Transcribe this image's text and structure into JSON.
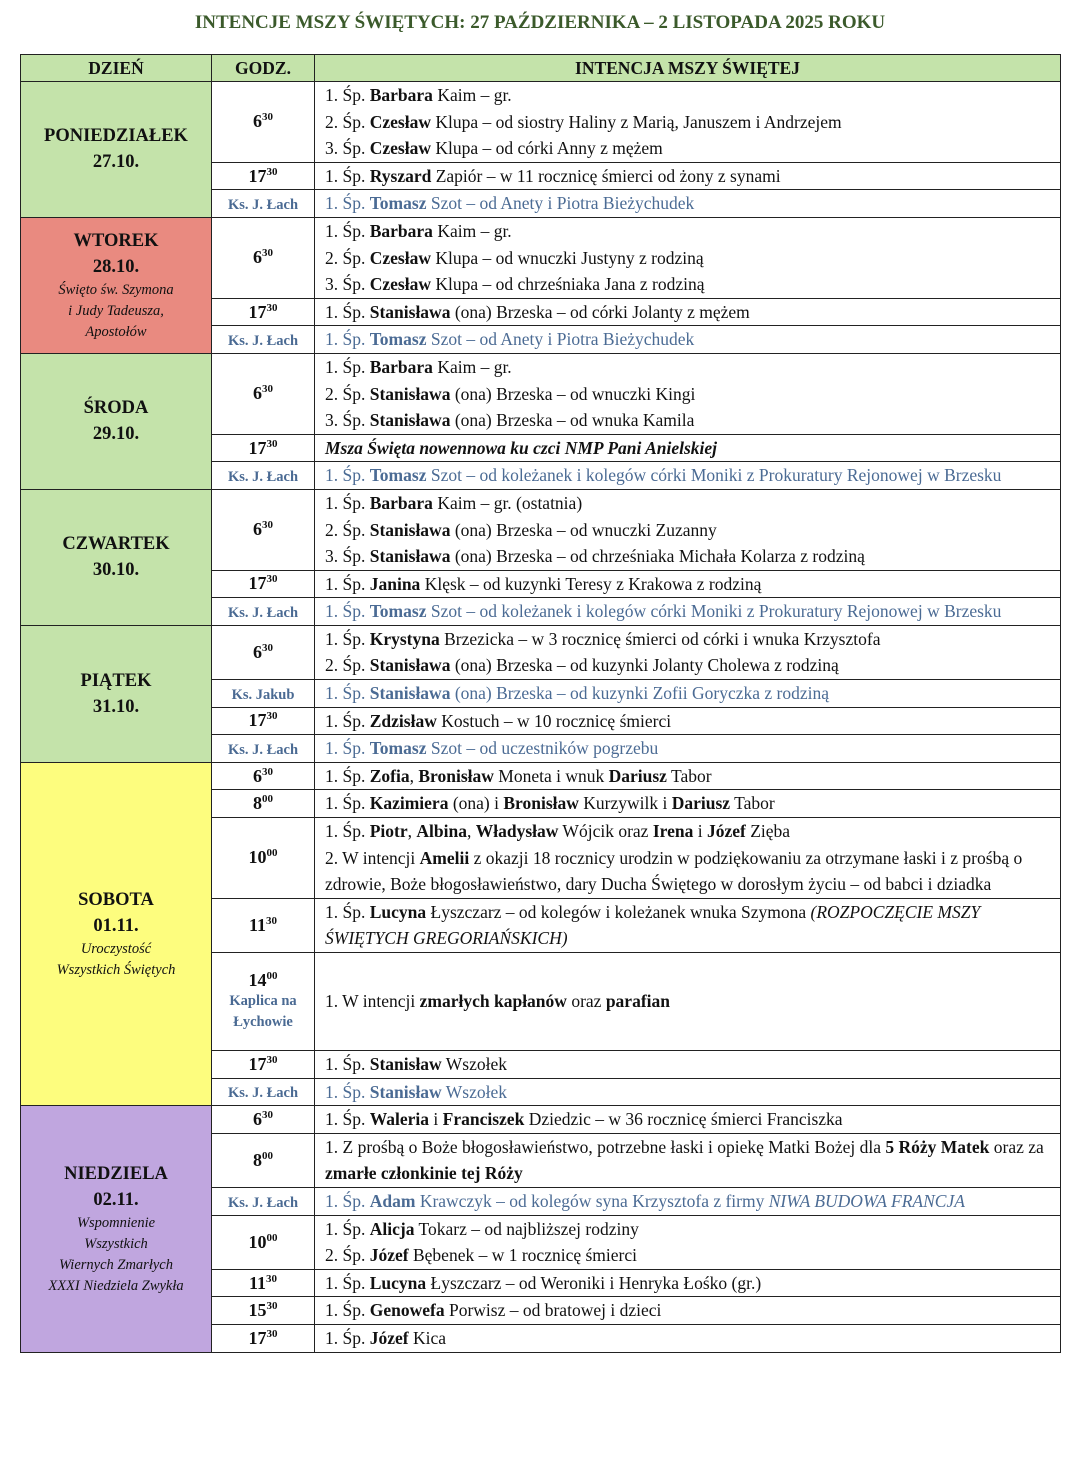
{
  "title": "INTENCJE MSZY ŚWIĘTYCH: 27 PAŹDZIERNIKA – 2 LISTOPADA 2025 ROKU",
  "headers": {
    "day": "DZIEŃ",
    "time": "GODZ.",
    "intention": "INTENCJA MSZY ŚWIĘTEJ"
  },
  "colors": {
    "title": "#3b5a2b",
    "header": "#c4e3aa",
    "priest_text": "#4b6b94"
  },
  "days": [
    {
      "name": "PONIEDZIAŁEK",
      "date": "27.10.",
      "note": [],
      "color": "#c4e3aa",
      "masses": [
        {
          "h": "6",
          "m": "30",
          "lines": [
            [
              [
                "1. Śp. ",
                ""
              ],
              [
                "Barbara",
                "b"
              ],
              [
                " Kaim – gr.",
                ""
              ]
            ],
            [
              [
                "2. Śp. ",
                ""
              ],
              [
                "Czesław",
                "b"
              ],
              [
                " Klupa – od siostry Haliny z Marią, Januszem i Andrzejem",
                ""
              ]
            ],
            [
              [
                "3. Śp. ",
                ""
              ],
              [
                "Czesław",
                "b"
              ],
              [
                " Klupa – od córki Anny z mężem",
                ""
              ]
            ]
          ]
        },
        {
          "h": "17",
          "m": "30",
          "lines": [
            [
              [
                "1. Śp. ",
                ""
              ],
              [
                "Ryszard",
                "b"
              ],
              [
                " Zapiór – w 11 rocznicę śmierci od żony z synami",
                ""
              ]
            ]
          ]
        },
        {
          "priest": "Ks. J. Łach",
          "lines": [
            [
              [
                "1. Śp. ",
                ""
              ],
              [
                "Tomasz",
                "b"
              ],
              [
                " Szot – od Anety i Piotra Bieżychudek",
                ""
              ]
            ]
          ]
        }
      ]
    },
    {
      "name": "WTOREK",
      "date": "28.10.",
      "note": [
        "Święto św. Szymona",
        "i Judy Tadeusza,",
        "Apostołów"
      ],
      "color": "#e98a80",
      "masses": [
        {
          "h": "6",
          "m": "30",
          "lines": [
            [
              [
                "1. Śp. ",
                ""
              ],
              [
                "Barbara",
                "b"
              ],
              [
                " Kaim – gr.",
                ""
              ]
            ],
            [
              [
                "2. Śp. ",
                ""
              ],
              [
                "Czesław",
                "b"
              ],
              [
                " Klupa – od wnuczki Justyny z rodziną",
                ""
              ]
            ],
            [
              [
                "3. Śp. ",
                ""
              ],
              [
                "Czesław",
                "b"
              ],
              [
                " Klupa – od chrześniaka Jana z rodziną",
                ""
              ]
            ]
          ]
        },
        {
          "h": "17",
          "m": "30",
          "lines": [
            [
              [
                "1. Śp. ",
                ""
              ],
              [
                "Stanisława",
                "b"
              ],
              [
                " (ona) Brzeska – od córki Jolanty z mężem",
                ""
              ]
            ]
          ]
        },
        {
          "priest": "Ks. J. Łach",
          "lines": [
            [
              [
                "1. Śp. ",
                ""
              ],
              [
                "Tomasz",
                "b"
              ],
              [
                " Szot – od Anety i Piotra Bieżychudek",
                ""
              ]
            ]
          ]
        }
      ]
    },
    {
      "name": "ŚRODA",
      "date": "29.10.",
      "note": [],
      "color": "#c4e3aa",
      "masses": [
        {
          "h": "6",
          "m": "30",
          "lines": [
            [
              [
                "1. Śp. ",
                ""
              ],
              [
                "Barbara",
                "b"
              ],
              [
                " Kaim – gr.",
                ""
              ]
            ],
            [
              [
                "2. Śp. ",
                ""
              ],
              [
                "Stanisława",
                "b"
              ],
              [
                " (ona) Brzeska – od wnuczki Kingi",
                ""
              ]
            ],
            [
              [
                "3. Śp. ",
                ""
              ],
              [
                "Stanisława",
                "b"
              ],
              [
                " (ona) Brzeska – od wnuka Kamila",
                ""
              ]
            ]
          ]
        },
        {
          "h": "17",
          "m": "30",
          "lines": [
            [
              [
                "Msza Święta nowennowa ku czci NMP Pani Anielskiej",
                "b i"
              ]
            ]
          ]
        },
        {
          "priest": "Ks. J. Łach",
          "lines": [
            [
              [
                "1. Śp. ",
                ""
              ],
              [
                "Tomasz",
                "b"
              ],
              [
                " Szot – od koleżanek i kolegów córki Moniki z Prokuratury Rejonowej w Brzesku",
                ""
              ]
            ]
          ]
        }
      ]
    },
    {
      "name": "CZWARTEK",
      "date": "30.10.",
      "note": [],
      "color": "#c4e3aa",
      "masses": [
        {
          "h": "6",
          "m": "30",
          "lines": [
            [
              [
                "1. Śp. ",
                ""
              ],
              [
                "Barbara",
                "b"
              ],
              [
                " Kaim – gr. (ostatnia)",
                ""
              ]
            ],
            [
              [
                "2. Śp. ",
                ""
              ],
              [
                "Stanisława",
                "b"
              ],
              [
                " (ona) Brzeska – od wnuczki Zuzanny",
                ""
              ]
            ],
            [
              [
                "3. Śp. ",
                ""
              ],
              [
                "Stanisława",
                "b"
              ],
              [
                " (ona) Brzeska – od chrześniaka Michała Kolarza z rodziną",
                ""
              ]
            ]
          ]
        },
        {
          "h": "17",
          "m": "30",
          "lines": [
            [
              [
                "1. Śp. ",
                ""
              ],
              [
                "Janina",
                "b"
              ],
              [
                " Klęsk – od kuzynki Teresy z Krakowa z rodziną",
                ""
              ]
            ]
          ]
        },
        {
          "priest": "Ks. J. Łach",
          "lines": [
            [
              [
                "1. Śp. ",
                ""
              ],
              [
                "Tomasz",
                "b"
              ],
              [
                " Szot – od koleżanek i kolegów córki Moniki z Prokuratury Rejonowej w Brzesku",
                ""
              ]
            ]
          ]
        }
      ]
    },
    {
      "name": "PIĄTEK",
      "date": "31.10.",
      "note": [],
      "color": "#c4e3aa",
      "masses": [
        {
          "h": "6",
          "m": "30",
          "lines": [
            [
              [
                "1. Śp. ",
                ""
              ],
              [
                "Krystyna",
                "b"
              ],
              [
                " Brzezicka – w 3 rocznicę śmierci od córki i wnuka Krzysztofa",
                ""
              ]
            ],
            [
              [
                "2. Śp. ",
                ""
              ],
              [
                "Stanisława",
                "b"
              ],
              [
                " (ona) Brzeska – od kuzynki Jolanty Cholewa z rodziną",
                ""
              ]
            ]
          ]
        },
        {
          "priest": "Ks. Jakub",
          "lines": [
            [
              [
                "1. Śp. ",
                ""
              ],
              [
                "Stanisława",
                "b"
              ],
              [
                " (ona) Brzeska – od kuzynki Zofii Goryczka z rodziną",
                ""
              ]
            ]
          ]
        },
        {
          "h": "17",
          "m": "30",
          "lines": [
            [
              [
                "1. Śp. ",
                ""
              ],
              [
                "Zdzisław",
                "b"
              ],
              [
                " Kostuch – w 10 rocznicę śmierci",
                ""
              ]
            ]
          ]
        },
        {
          "priest": "Ks. J. Łach",
          "lines": [
            [
              [
                "1. Śp. ",
                ""
              ],
              [
                "Tomasz",
                "b"
              ],
              [
                " Szot – od uczestników pogrzebu",
                ""
              ]
            ]
          ]
        }
      ]
    },
    {
      "name": "SOBOTA",
      "date": "01.11.",
      "note": [
        "Uroczystość",
        "Wszystkich Świętych"
      ],
      "color": "#fdfd7e",
      "masses": [
        {
          "h": "6",
          "m": "30",
          "lines": [
            [
              [
                "1. Śp. ",
                ""
              ],
              [
                "Zofia",
                "b"
              ],
              [
                ", ",
                ""
              ],
              [
                "Bronisław",
                "b"
              ],
              [
                " Moneta i wnuk ",
                ""
              ],
              [
                "Dariusz",
                "b"
              ],
              [
                " Tabor",
                ""
              ]
            ]
          ]
        },
        {
          "h": "8",
          "m": "00",
          "lines": [
            [
              [
                "1. Śp. ",
                ""
              ],
              [
                "Kazimiera",
                "b"
              ],
              [
                " (ona) i ",
                ""
              ],
              [
                "Bronisław",
                "b"
              ],
              [
                " Kurzywilk i ",
                ""
              ],
              [
                "Dariusz",
                "b"
              ],
              [
                " Tabor",
                ""
              ]
            ]
          ]
        },
        {
          "h": "10",
          "m": "00",
          "lines": [
            [
              [
                "1. Śp. ",
                ""
              ],
              [
                "Piotr",
                "b"
              ],
              [
                ", ",
                ""
              ],
              [
                "Albina",
                "b"
              ],
              [
                ", ",
                ""
              ],
              [
                "Władysław",
                "b"
              ],
              [
                " Wójcik oraz ",
                ""
              ],
              [
                "Irena",
                "b"
              ],
              [
                " i ",
                ""
              ],
              [
                "Józef",
                "b"
              ],
              [
                " Zięba",
                ""
              ]
            ],
            [
              [
                "2. W intencji ",
                ""
              ],
              [
                "Amelii",
                "b"
              ],
              [
                " z okazji 18 rocznicy urodzin w podziękowaniu za otrzymane łaski i z prośbą o zdrowie, Boże błogosławieństwo, dary Ducha Świętego w dorosłym życiu – od babci i dziadka",
                ""
              ]
            ]
          ]
        },
        {
          "h": "11",
          "m": "30",
          "lines": [
            [
              [
                "1. Śp. ",
                ""
              ],
              [
                "Lucyna",
                "b"
              ],
              [
                " Łyszczarz – od kolegów i koleżanek wnuka Szymona ",
                ""
              ],
              [
                "(ROZPOCZĘCIE MSZY ŚWIĘTYCH GREGORIAŃSKICH)",
                "i"
              ]
            ]
          ]
        },
        {
          "h": "14",
          "m": "00",
          "place": "Kaplica na Łychowie",
          "lines": [
            [
              [
                "1. W intencji ",
                ""
              ],
              [
                "zmarłych kapłanów",
                "b"
              ],
              [
                " oraz ",
                ""
              ],
              [
                "parafian",
                "b"
              ]
            ]
          ]
        },
        {
          "h": "17",
          "m": "30",
          "lines": [
            [
              [
                "1. Śp. ",
                ""
              ],
              [
                "Stanisław",
                "b"
              ],
              [
                " Wszołek",
                ""
              ]
            ]
          ]
        },
        {
          "priest": "Ks. J. Łach",
          "lines": [
            [
              [
                "1. Śp. ",
                ""
              ],
              [
                "Stanisław",
                "b"
              ],
              [
                " Wszołek",
                ""
              ]
            ]
          ]
        }
      ]
    },
    {
      "name": "NIEDZIELA",
      "date": "02.11.",
      "note": [
        "Wspomnienie",
        "Wszystkich",
        "Wiernych Zmarłych",
        "XXXI Niedziela Zwykła"
      ],
      "color": "#c0a6df",
      "masses": [
        {
          "h": "6",
          "m": "30",
          "lines": [
            [
              [
                "1. Śp. ",
                ""
              ],
              [
                "Waleria",
                "b"
              ],
              [
                " i ",
                ""
              ],
              [
                "Franciszek",
                "b"
              ],
              [
                " Dziedzic – w 36 rocznicę śmierci Franciszka",
                ""
              ]
            ]
          ]
        },
        {
          "h": "8",
          "m": "00",
          "lines": [
            [
              [
                "1. Z prośbą o Boże błogosławieństwo, potrzebne łaski i opiekę Matki Bożej dla ",
                ""
              ],
              [
                "5 Róży Matek",
                "b"
              ],
              [
                " oraz za ",
                ""
              ],
              [
                "zmarłe członkinie tej Róży",
                "b"
              ]
            ]
          ]
        },
        {
          "priest": "Ks. J. Łach",
          "lines": [
            [
              [
                "1. Śp. ",
                ""
              ],
              [
                "Adam",
                "b"
              ],
              [
                " Krawczyk – od kolegów syna Krzysztofa z firmy ",
                ""
              ],
              [
                "NIWA BUDOWA FRANCJA",
                "i"
              ]
            ]
          ]
        },
        {
          "h": "10",
          "m": "00",
          "lines": [
            [
              [
                "1. Śp. ",
                ""
              ],
              [
                "Alicja",
                "b"
              ],
              [
                " Tokarz – od najbliższej rodziny",
                ""
              ]
            ],
            [
              [
                "2. Śp. ",
                ""
              ],
              [
                "Józef",
                "b"
              ],
              [
                " Bębenek – w 1 rocznicę śmierci",
                ""
              ]
            ]
          ]
        },
        {
          "h": "11",
          "m": "30",
          "lines": [
            [
              [
                "1. Śp. ",
                ""
              ],
              [
                "Lucyna",
                "b"
              ],
              [
                " Łyszczarz – od Weroniki i Henryka Łośko (gr.)",
                ""
              ]
            ]
          ]
        },
        {
          "h": "15",
          "m": "30",
          "lines": [
            [
              [
                "1. Śp. ",
                ""
              ],
              [
                "Genowefa",
                "b"
              ],
              [
                " Porwisz – od bratowej i dzieci",
                ""
              ]
            ]
          ]
        },
        {
          "h": "17",
          "m": "30",
          "lines": [
            [
              [
                "1. Śp. ",
                ""
              ],
              [
                "Józef",
                "b"
              ],
              [
                " Kica",
                ""
              ]
            ]
          ]
        }
      ]
    }
  ]
}
